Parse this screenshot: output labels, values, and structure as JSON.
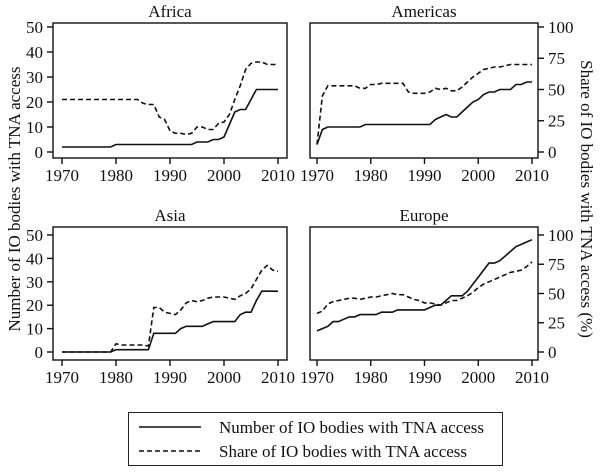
{
  "figure": {
    "left_axis_label": "Number of IO bodies with TNA access",
    "right_axis_label": "Share of IO bodies with TNA access (%)",
    "background": "#ffffff",
    "line_color": "#111111"
  },
  "legend": {
    "position": "bottom",
    "items": [
      {
        "label": "Number of IO bodies with TNA access",
        "style": "solid"
      },
      {
        "label": "Share of IO bodies with TNA access",
        "style": "dashed"
      }
    ]
  },
  "chart_data": [
    {
      "type": "line",
      "title": "Africa",
      "x_range": [
        1970,
        2010
      ],
      "x_step": 1,
      "xticks": [
        1970,
        1980,
        1990,
        2000,
        2010
      ],
      "ytick_side": "left",
      "ylim_left": [
        0,
        50
      ],
      "ylim_right": [
        0,
        100
      ],
      "yticks_left": [
        0,
        10,
        20,
        30,
        40,
        50
      ],
      "yticks_right": [
        0,
        25,
        50,
        75,
        100
      ],
      "series": [
        {
          "name": "Number of IO bodies with TNA access",
          "axis": "left",
          "style": "solid",
          "values": [
            2,
            2,
            2,
            2,
            2,
            2,
            2,
            2,
            2,
            2,
            3,
            3,
            3,
            3,
            3,
            3,
            3,
            3,
            3,
            3,
            3,
            3,
            3,
            3,
            3,
            4,
            4,
            4,
            5,
            5,
            6,
            11,
            16,
            17,
            17,
            21,
            25,
            25,
            25,
            25,
            25
          ]
        },
        {
          "name": "Share of IO bodies with TNA access",
          "axis": "right",
          "style": "dashed",
          "values": [
            42,
            42,
            42,
            42,
            42,
            42,
            42,
            42,
            42,
            42,
            42,
            42,
            42,
            42,
            42,
            39,
            38,
            38,
            28,
            26,
            17,
            15,
            15,
            14,
            15,
            20,
            20,
            18,
            18,
            23,
            24,
            30,
            42,
            53,
            66,
            71,
            72,
            72,
            70,
            70,
            70
          ]
        }
      ]
    },
    {
      "type": "line",
      "title": "Americas",
      "x_range": [
        1970,
        2010
      ],
      "x_step": 1,
      "xticks": [
        1970,
        1980,
        1990,
        2000,
        2010
      ],
      "ytick_side": "right",
      "ylim_left": [
        0,
        50
      ],
      "ylim_right": [
        0,
        100
      ],
      "yticks_left": [
        0,
        10,
        20,
        30,
        40,
        50
      ],
      "yticks_right": [
        0,
        25,
        50,
        75,
        100
      ],
      "series": [
        {
          "name": "Number of IO bodies with TNA access",
          "axis": "left",
          "style": "solid",
          "values": [
            3,
            9,
            10,
            10,
            10,
            10,
            10,
            10,
            10,
            11,
            11,
            11,
            11,
            11,
            11,
            11,
            11,
            11,
            11,
            11,
            11,
            11,
            13,
            14,
            15,
            14,
            14,
            16,
            18,
            20,
            21,
            23,
            24,
            24,
            25,
            25,
            25,
            27,
            27,
            28,
            28
          ]
        },
        {
          "name": "Share of IO bodies with TNA access",
          "axis": "right",
          "style": "dashed",
          "values": [
            6,
            45,
            53,
            53,
            53,
            53,
            53,
            53,
            51,
            51,
            54,
            54,
            55,
            55,
            55,
            55,
            55,
            48,
            47,
            47,
            47,
            48,
            51,
            50,
            51,
            49,
            49,
            52,
            56,
            60,
            63,
            66,
            67,
            68,
            68,
            69,
            70,
            70,
            70,
            70,
            70
          ]
        }
      ]
    },
    {
      "type": "line",
      "title": "Asia",
      "x_range": [
        1970,
        2010
      ],
      "x_step": 1,
      "xticks": [
        1970,
        1980,
        1990,
        2000,
        2010
      ],
      "ytick_side": "left",
      "ylim_left": [
        0,
        50
      ],
      "ylim_right": [
        0,
        100
      ],
      "yticks_left": [
        0,
        10,
        20,
        30,
        40,
        50
      ],
      "yticks_right": [
        0,
        25,
        50,
        75,
        100
      ],
      "series": [
        {
          "name": "Number of IO bodies with TNA access",
          "axis": "left",
          "style": "solid",
          "values": [
            0,
            0,
            0,
            0,
            0,
            0,
            0,
            0,
            0,
            0,
            1,
            1,
            1,
            1,
            1,
            1,
            1,
            8,
            8,
            8,
            8,
            8,
            10,
            11,
            11,
            11,
            11,
            12,
            13,
            13,
            13,
            13,
            13,
            16,
            17,
            17,
            22,
            26,
            26,
            26,
            26
          ]
        },
        {
          "name": "Share of IO bodies with TNA access",
          "axis": "right",
          "style": "dashed",
          "values": [
            0,
            0,
            0,
            0,
            0,
            0,
            0,
            0,
            0,
            0,
            7,
            6,
            6,
            6,
            6,
            6,
            5,
            38,
            38,
            34,
            33,
            32,
            36,
            42,
            44,
            43,
            44,
            46,
            47,
            47,
            47,
            46,
            45,
            48,
            50,
            54,
            62,
            70,
            74,
            70,
            69
          ]
        }
      ]
    },
    {
      "type": "line",
      "title": "Europe",
      "x_range": [
        1970,
        2010
      ],
      "x_step": 1,
      "xticks": [
        1970,
        1980,
        1990,
        2000,
        2010
      ],
      "ytick_side": "right",
      "ylim_left": [
        0,
        50
      ],
      "ylim_right": [
        0,
        100
      ],
      "yticks_left": [
        0,
        10,
        20,
        30,
        40,
        50
      ],
      "yticks_right": [
        0,
        25,
        50,
        75,
        100
      ],
      "series": [
        {
          "name": "Number of IO bodies with TNA access",
          "axis": "left",
          "style": "solid",
          "values": [
            9,
            10,
            11,
            13,
            13,
            14,
            15,
            15,
            16,
            16,
            16,
            16,
            17,
            17,
            17,
            18,
            18,
            18,
            18,
            18,
            18,
            19,
            20,
            20,
            22,
            24,
            24,
            24,
            26,
            29,
            32,
            35,
            38,
            38,
            39,
            41,
            43,
            45,
            46,
            47,
            48
          ]
        },
        {
          "name": "Share of IO bodies with TNA access",
          "axis": "right",
          "style": "dashed",
          "values": [
            33,
            35,
            41,
            43,
            44,
            45,
            46,
            46,
            45,
            46,
            47,
            47,
            48,
            49,
            50,
            49,
            49,
            47,
            45,
            44,
            42,
            42,
            41,
            40,
            42,
            44,
            44,
            46,
            48,
            51,
            55,
            58,
            60,
            62,
            64,
            66,
            68,
            69,
            70,
            73,
            77
          ]
        }
      ]
    }
  ]
}
